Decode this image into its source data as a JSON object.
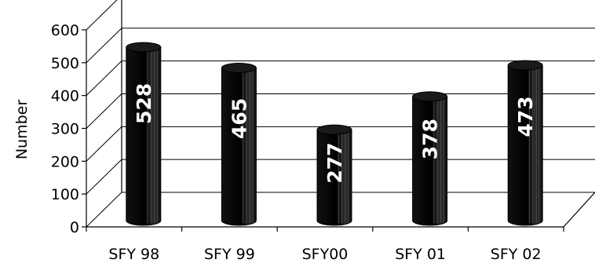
{
  "chart_data": {
    "type": "bar",
    "title": "",
    "xlabel": "",
    "ylabel": "Number",
    "categories": [
      "SFY 98",
      "SFY 99",
      "SFY00",
      "SFY 01",
      "SFY 02"
    ],
    "values": [
      528,
      465,
      277,
      378,
      473
    ],
    "data_labels": [
      "528",
      "465",
      "277",
      "378",
      "473"
    ],
    "ylim": [
      0,
      600
    ],
    "yticks": [
      "0",
      "100",
      "200",
      "300",
      "400",
      "500",
      "600"
    ],
    "grid": true,
    "style": "3d-cylinder",
    "bar_color": "#000000",
    "label_color": "#ffffff"
  }
}
